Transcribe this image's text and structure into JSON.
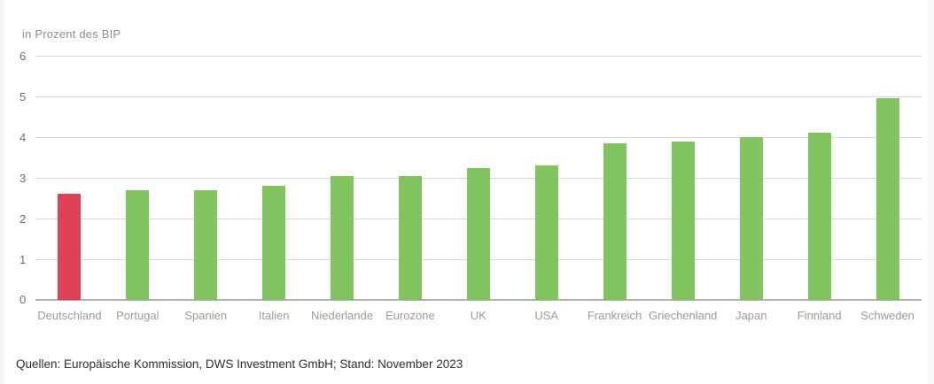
{
  "page": {
    "background": "#ffffff",
    "edge_strip_color": "#f4f4f4"
  },
  "chart_data": {
    "type": "bar",
    "title": "in Prozent des BIP",
    "ylabel": "in Prozent des BIP",
    "xlabel": "",
    "categories": [
      "Deutschland",
      "Portugal",
      "Spanien",
      "Italien",
      "Niederlande",
      "Eurozone",
      "UK",
      "USA",
      "Frankreich",
      "Griechenland",
      "Japan",
      "Finnland",
      "Schweden"
    ],
    "values": [
      2.6,
      2.7,
      2.7,
      2.8,
      3.05,
      3.05,
      3.25,
      3.3,
      3.85,
      3.9,
      4.0,
      4.1,
      4.95
    ],
    "ylim": [
      0,
      6
    ],
    "yticks": [
      0,
      1,
      2,
      3,
      4,
      5,
      6
    ],
    "grid": "horizontal",
    "legend": "none",
    "bar_color": "#81c35e",
    "highlight_index": 0,
    "highlight_color": "#e04054",
    "gridline_color": "#d8d8d8",
    "baseline_color": "#b3b3b3"
  },
  "footer": {
    "source_text": "Quellen: Europäische Kommission, DWS Investment GmbH; Stand: November 2023"
  }
}
